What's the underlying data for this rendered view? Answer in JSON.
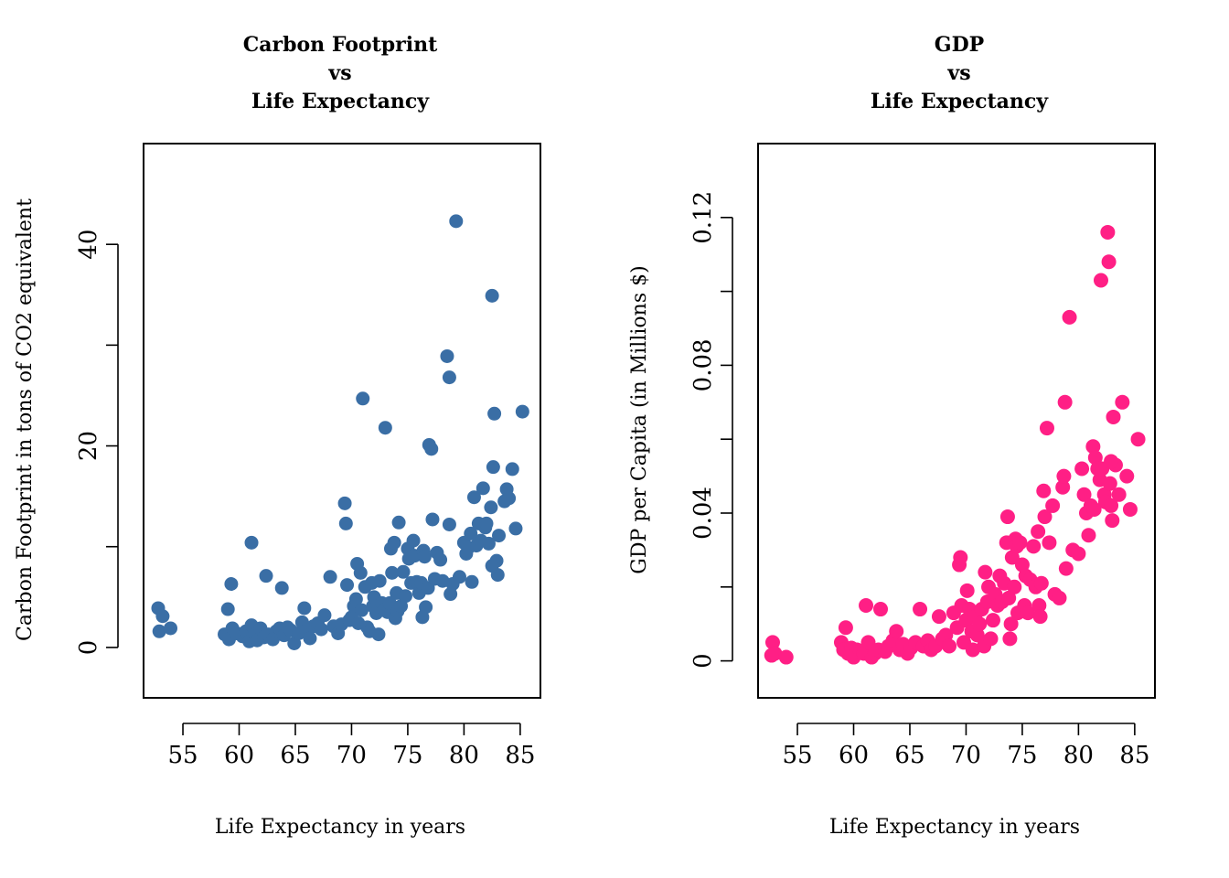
{
  "chart_data": [
    {
      "type": "scatter",
      "title": [
        "Carbon Footprint",
        "vs",
        "Life Expectancy"
      ],
      "xlabel": "Life Expectancy in years",
      "ylabel": "Carbon Footprint in tons of CO2 equivalent",
      "xlim": [
        51.5,
        86.8
      ],
      "ylim": [
        -5,
        50
      ],
      "xticks": [
        55,
        60,
        65,
        70,
        75,
        80,
        85
      ],
      "yticks": [
        0,
        10,
        20,
        30,
        40
      ],
      "ytick_labels": [
        "0",
        "",
        "20",
        "",
        "40"
      ],
      "xtick_labels": [
        "55",
        "60",
        "65",
        "70",
        "75",
        "80",
        "85"
      ],
      "color": "#3a6ea5",
      "points": [
        [
          52.8,
          3.9
        ],
        [
          53.2,
          3.1
        ],
        [
          52.9,
          1.6
        ],
        [
          53.9,
          1.9
        ],
        [
          59.0,
          3.8
        ],
        [
          59.3,
          6.3
        ],
        [
          58.7,
          1.3
        ],
        [
          59.1,
          0.8
        ],
        [
          59.4,
          1.9
        ],
        [
          59.8,
          1.4
        ],
        [
          60.3,
          1.1
        ],
        [
          60.6,
          1.6
        ],
        [
          60.9,
          0.6
        ],
        [
          61.1,
          2.2
        ],
        [
          61.4,
          1.3
        ],
        [
          61.6,
          0.7
        ],
        [
          61.9,
          1.9
        ],
        [
          62.2,
          1.0
        ],
        [
          62.6,
          1.3
        ],
        [
          63.0,
          0.8
        ],
        [
          63.3,
          1.6
        ],
        [
          63.6,
          1.9
        ],
        [
          64.0,
          1.2
        ],
        [
          64.3,
          2.0
        ],
        [
          64.6,
          1.7
        ],
        [
          64.9,
          0.4
        ],
        [
          65.3,
          1.4
        ],
        [
          65.6,
          2.5
        ],
        [
          66.0,
          1.7
        ],
        [
          66.3,
          0.9
        ],
        [
          66.6,
          2.1
        ],
        [
          67.0,
          2.4
        ],
        [
          67.3,
          1.8
        ],
        [
          67.6,
          3.2
        ],
        [
          61.1,
          10.4
        ],
        [
          62.4,
          7.1
        ],
        [
          63.8,
          5.9
        ],
        [
          65.8,
          3.9
        ],
        [
          68.1,
          7.0
        ],
        [
          68.4,
          2.1
        ],
        [
          68.8,
          1.4
        ],
        [
          69.1,
          2.3
        ],
        [
          69.4,
          14.3
        ],
        [
          69.5,
          12.3
        ],
        [
          69.6,
          6.2
        ],
        [
          69.8,
          2.7
        ],
        [
          70.0,
          3.0
        ],
        [
          70.2,
          4.1
        ],
        [
          70.4,
          4.8
        ],
        [
          70.5,
          8.3
        ],
        [
          70.6,
          2.4
        ],
        [
          70.8,
          7.4
        ],
        [
          70.9,
          3.7
        ],
        [
          71.0,
          24.7
        ],
        [
          71.2,
          6.0
        ],
        [
          71.4,
          2.0
        ],
        [
          71.6,
          1.6
        ],
        [
          71.8,
          6.4
        ],
        [
          71.9,
          4.1
        ],
        [
          72.0,
          5.0
        ],
        [
          72.2,
          3.4
        ],
        [
          72.4,
          1.3
        ],
        [
          72.5,
          6.6
        ],
        [
          72.7,
          4.4
        ],
        [
          72.9,
          3.7
        ],
        [
          73.0,
          21.8
        ],
        [
          73.2,
          3.5
        ],
        [
          73.4,
          4.4
        ],
        [
          73.5,
          9.8
        ],
        [
          73.6,
          7.4
        ],
        [
          73.8,
          10.4
        ],
        [
          73.9,
          2.9
        ],
        [
          74.0,
          5.4
        ],
        [
          74.1,
          3.6
        ],
        [
          74.2,
          12.4
        ],
        [
          74.4,
          4.1
        ],
        [
          74.6,
          7.5
        ],
        [
          74.8,
          5.1
        ],
        [
          75.0,
          9.8
        ],
        [
          75.1,
          8.8
        ],
        [
          75.3,
          6.4
        ],
        [
          75.5,
          10.6
        ],
        [
          75.6,
          9.1
        ],
        [
          75.8,
          6.5
        ],
        [
          76.0,
          5.4
        ],
        [
          76.2,
          6.4
        ],
        [
          76.3,
          3.0
        ],
        [
          76.4,
          9.6
        ],
        [
          76.5,
          9.0
        ],
        [
          76.6,
          4.0
        ],
        [
          76.8,
          5.9
        ],
        [
          76.9,
          20.1
        ],
        [
          77.1,
          19.7
        ],
        [
          77.2,
          12.7
        ],
        [
          77.4,
          6.8
        ],
        [
          77.6,
          9.4
        ],
        [
          77.9,
          8.7
        ],
        [
          78.1,
          6.6
        ],
        [
          78.5,
          28.9
        ],
        [
          78.7,
          26.8
        ],
        [
          78.7,
          12.2
        ],
        [
          78.8,
          5.3
        ],
        [
          79.0,
          6.3
        ],
        [
          79.3,
          42.3
        ],
        [
          79.6,
          7.0
        ],
        [
          80.0,
          10.4
        ],
        [
          80.2,
          9.3
        ],
        [
          80.4,
          9.9
        ],
        [
          80.6,
          11.3
        ],
        [
          80.9,
          14.9
        ],
        [
          81.1,
          10.1
        ],
        [
          81.3,
          12.3
        ],
        [
          81.5,
          10.6
        ],
        [
          81.7,
          15.8
        ],
        [
          81.9,
          11.9
        ],
        [
          82.0,
          12.3
        ],
        [
          82.2,
          10.3
        ],
        [
          82.4,
          13.9
        ],
        [
          82.5,
          34.9
        ],
        [
          82.6,
          17.9
        ],
        [
          82.7,
          23.2
        ],
        [
          82.9,
          8.6
        ],
        [
          83.0,
          7.2
        ],
        [
          83.1,
          11.1
        ],
        [
          83.6,
          14.5
        ],
        [
          83.8,
          15.7
        ],
        [
          84.0,
          14.8
        ],
        [
          84.3,
          17.7
        ],
        [
          84.6,
          11.8
        ],
        [
          85.2,
          23.4
        ],
        [
          80.7,
          6.5
        ],
        [
          82.5,
          8.1
        ]
      ]
    },
    {
      "type": "scatter",
      "title": [
        "GDP",
        "vs",
        "Life Expectancy"
      ],
      "xlabel": "Life Expectancy in years",
      "ylabel": "GDP per Capita (in Millions $)",
      "xlim": [
        51.5,
        86.8
      ],
      "ylim": [
        -0.01,
        0.14
      ],
      "xticks": [
        55,
        60,
        65,
        70,
        75,
        80,
        85
      ],
      "yticks": [
        0,
        0.02,
        0.04,
        0.06,
        0.08,
        0.1,
        0.12
      ],
      "ytick_labels": [
        "0",
        "",
        "0.04",
        "",
        "0.08",
        "",
        "0.12"
      ],
      "xtick_labels": [
        "55",
        "60",
        "65",
        "70",
        "75",
        "80",
        "85"
      ],
      "color": "#ff1f85",
      "points": [
        [
          52.8,
          0.005
        ],
        [
          53.0,
          0.002
        ],
        [
          52.7,
          0.0015
        ],
        [
          54.0,
          0.001
        ],
        [
          58.9,
          0.005
        ],
        [
          59.1,
          0.003
        ],
        [
          59.3,
          0.009
        ],
        [
          59.5,
          0.002
        ],
        [
          59.8,
          0.0035
        ],
        [
          60.0,
          0.001
        ],
        [
          60.3,
          0.003
        ],
        [
          60.6,
          0.0025
        ],
        [
          60.9,
          0.002
        ],
        [
          61.1,
          0.015
        ],
        [
          61.3,
          0.005
        ],
        [
          61.6,
          0.001
        ],
        [
          61.9,
          0.002
        ],
        [
          62.2,
          0.003
        ],
        [
          62.4,
          0.014
        ],
        [
          62.8,
          0.0025
        ],
        [
          63.1,
          0.004
        ],
        [
          63.5,
          0.0055
        ],
        [
          63.8,
          0.008
        ],
        [
          64.1,
          0.003
        ],
        [
          64.4,
          0.0045
        ],
        [
          64.8,
          0.002
        ],
        [
          65.1,
          0.0035
        ],
        [
          65.5,
          0.005
        ],
        [
          65.9,
          0.014
        ],
        [
          66.2,
          0.004
        ],
        [
          66.6,
          0.0055
        ],
        [
          66.9,
          0.003
        ],
        [
          67.3,
          0.004
        ],
        [
          67.6,
          0.012
        ],
        [
          67.9,
          0.006
        ],
        [
          68.2,
          0.007
        ],
        [
          68.5,
          0.004
        ],
        [
          68.9,
          0.013
        ],
        [
          69.2,
          0.009
        ],
        [
          69.4,
          0.026
        ],
        [
          69.5,
          0.028
        ],
        [
          69.6,
          0.015
        ],
        [
          69.8,
          0.005
        ],
        [
          70.0,
          0.011
        ],
        [
          70.1,
          0.019
        ],
        [
          70.3,
          0.014
        ],
        [
          70.5,
          0.008
        ],
        [
          70.6,
          0.003
        ],
        [
          70.8,
          0.012
        ],
        [
          71.0,
          0.007
        ],
        [
          71.2,
          0.01
        ],
        [
          71.4,
          0.014
        ],
        [
          71.6,
          0.004
        ],
        [
          71.7,
          0.024
        ],
        [
          71.9,
          0.016
        ],
        [
          72.0,
          0.02
        ],
        [
          72.2,
          0.006
        ],
        [
          72.4,
          0.011
        ],
        [
          72.6,
          0.018
        ],
        [
          72.8,
          0.015
        ],
        [
          73.0,
          0.023
        ],
        [
          73.2,
          0.016
        ],
        [
          73.4,
          0.021
        ],
        [
          73.6,
          0.032
        ],
        [
          73.7,
          0.039
        ],
        [
          73.8,
          0.017
        ],
        [
          73.9,
          0.006
        ],
        [
          74.0,
          0.01
        ],
        [
          74.1,
          0.028
        ],
        [
          74.3,
          0.02
        ],
        [
          74.4,
          0.033
        ],
        [
          74.5,
          0.031
        ],
        [
          74.6,
          0.013
        ],
        [
          74.8,
          0.032
        ],
        [
          75.0,
          0.026
        ],
        [
          75.2,
          0.015
        ],
        [
          75.3,
          0.023
        ],
        [
          75.5,
          0.013
        ],
        [
          75.7,
          0.022
        ],
        [
          76.0,
          0.031
        ],
        [
          76.2,
          0.02
        ],
        [
          76.4,
          0.035
        ],
        [
          76.5,
          0.015
        ],
        [
          76.6,
          0.012
        ],
        [
          76.7,
          0.021
        ],
        [
          76.9,
          0.046
        ],
        [
          77.0,
          0.039
        ],
        [
          77.2,
          0.063
        ],
        [
          77.4,
          0.032
        ],
        [
          77.7,
          0.042
        ],
        [
          77.9,
          0.018
        ],
        [
          78.3,
          0.017
        ],
        [
          78.6,
          0.047
        ],
        [
          78.7,
          0.05
        ],
        [
          78.8,
          0.07
        ],
        [
          78.9,
          0.025
        ],
        [
          79.2,
          0.093
        ],
        [
          79.5,
          0.03
        ],
        [
          80.0,
          0.029
        ],
        [
          80.3,
          0.052
        ],
        [
          80.5,
          0.045
        ],
        [
          80.7,
          0.04
        ],
        [
          80.9,
          0.034
        ],
        [
          81.1,
          0.042
        ],
        [
          81.3,
          0.058
        ],
        [
          81.5,
          0.055
        ],
        [
          81.7,
          0.052
        ],
        [
          81.9,
          0.049
        ],
        [
          82.0,
          0.103
        ],
        [
          82.1,
          0.052
        ],
        [
          82.3,
          0.045
        ],
        [
          82.4,
          0.043
        ],
        [
          82.6,
          0.116
        ],
        [
          82.7,
          0.108
        ],
        [
          82.8,
          0.048
        ],
        [
          82.9,
          0.042
        ],
        [
          83.0,
          0.038
        ],
        [
          83.1,
          0.066
        ],
        [
          83.3,
          0.053
        ],
        [
          83.6,
          0.045
        ],
        [
          83.9,
          0.07
        ],
        [
          84.3,
          0.05
        ],
        [
          84.6,
          0.041
        ],
        [
          85.3,
          0.06
        ],
        [
          82.9,
          0.054
        ],
        [
          81.4,
          0.041
        ]
      ]
    }
  ]
}
